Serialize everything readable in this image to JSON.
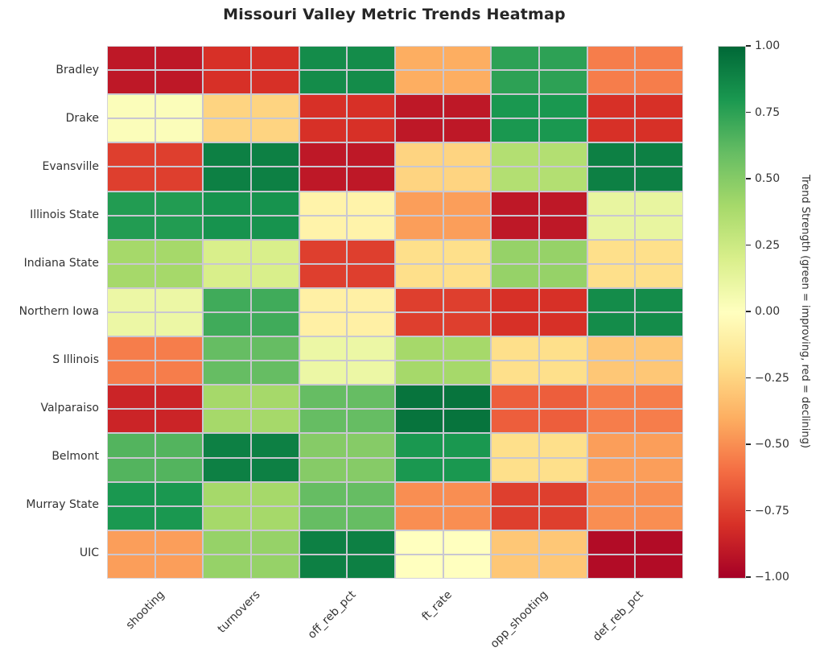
{
  "title": "Missouri Valley Metric Trends Heatmap",
  "chart_data": {
    "type": "heatmap",
    "title": "Missouri Valley Metric Trends Heatmap",
    "rows": [
      "Bradley",
      "Drake",
      "Evansville",
      "Illinois State",
      "Indiana State",
      "Northern Iowa",
      "S Illinois",
      "Valparaiso",
      "Belmont",
      "Murray State",
      "UIC"
    ],
    "columns": [
      "shooting",
      "turnovers",
      "off_reb_pct",
      "ft_rate",
      "opp_shooting",
      "def_reb_pct"
    ],
    "values": [
      [
        -0.9,
        -0.8,
        0.85,
        -0.4,
        0.75,
        -0.55
      ],
      [
        0.02,
        -0.25,
        -0.8,
        -0.9,
        0.8,
        -0.8
      ],
      [
        -0.75,
        0.9,
        -0.9,
        -0.25,
        0.35,
        0.9
      ],
      [
        0.78,
        0.82,
        -0.08,
        -0.45,
        -0.9,
        0.12
      ],
      [
        0.4,
        0.2,
        -0.75,
        -0.2,
        0.45,
        -0.2
      ],
      [
        0.1,
        0.7,
        -0.1,
        -0.75,
        -0.8,
        0.85
      ],
      [
        -0.55,
        0.6,
        0.1,
        0.4,
        -0.2,
        -0.3
      ],
      [
        -0.85,
        0.4,
        0.6,
        0.95,
        -0.65,
        -0.55
      ],
      [
        0.65,
        0.9,
        0.5,
        0.8,
        -0.2,
        -0.45
      ],
      [
        0.8,
        0.4,
        0.6,
        -0.5,
        -0.75,
        -0.5
      ],
      [
        -0.45,
        0.45,
        0.9,
        0.0,
        -0.3,
        -0.95
      ]
    ],
    "vmin": -1.0,
    "vmax": 1.0,
    "colormap": "RdYlGn",
    "colormap_stops": [
      "#a50026",
      "#d73027",
      "#f46d43",
      "#fdae61",
      "#fee08b",
      "#ffffbf",
      "#d9ef8b",
      "#a6d96a",
      "#66bd63",
      "#1a9850",
      "#006837"
    ],
    "grid_line_color": "#c9c7d1",
    "cell_subdivision": 2,
    "colorbar": {
      "ticks": [
        "1.00",
        "0.75",
        "0.50",
        "0.25",
        "0.00",
        "−0.25",
        "−0.50",
        "−0.75",
        "−1.00"
      ],
      "label": "Trend Strength (green = improving, red = declining)",
      "position": "right"
    }
  }
}
